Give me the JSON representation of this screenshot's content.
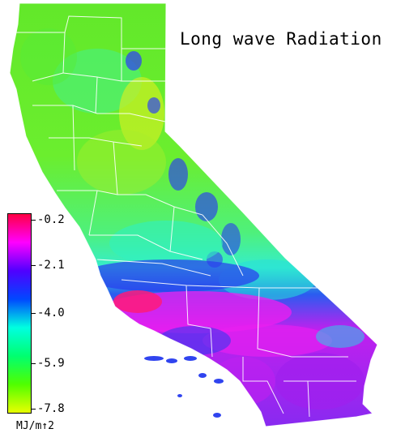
{
  "map": {
    "title": "Long wave Radiation",
    "colors": {
      "north_base": "#5ee82c",
      "north_light": "#9bef2a",
      "east_yellow": "#c8f020",
      "coast_cyan": "#37f5a0",
      "sierra_cyan": "#28e8c8",
      "blue": "#2a3bef",
      "purple": "#8a22ee",
      "magenta": "#f01ef0",
      "hot_pink": "#ff1a7a",
      "border_white": "#ffffff"
    }
  },
  "legend": {
    "ticks": [
      "-0.2",
      "-2.1",
      "-4.0",
      "-5.9",
      "-7.8"
    ],
    "unit": "MJ/m↑2",
    "gradient": [
      "#ff0044",
      "#ff00ff",
      "#5000ff",
      "#0048ff",
      "#00ffe0",
      "#00ff70",
      "#50ff00",
      "#e8ff00"
    ]
  }
}
